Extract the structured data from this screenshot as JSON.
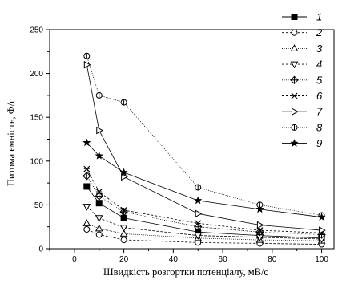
{
  "chart_data": {
    "type": "line",
    "xlabel": "Швидкість розгортки потенціалу, мВ/с",
    "ylabel": "Питома ємність, Ф/г",
    "xlim": [
      -10,
      105
    ],
    "ylim": [
      0,
      250
    ],
    "xticks": [
      0,
      20,
      40,
      60,
      80,
      100
    ],
    "yticks": [
      0,
      50,
      100,
      150,
      200,
      250
    ],
    "x": [
      5,
      10,
      20,
      50,
      75,
      100
    ],
    "legend_position": "top-right",
    "grid": false,
    "series": [
      {
        "name": "1",
        "marker": "square-filled",
        "dash": "solid",
        "values": [
          71,
          52,
          35,
          19,
          15,
          12
        ]
      },
      {
        "name": "2",
        "marker": "circle-open",
        "dash": "dash",
        "values": [
          22,
          16,
          10,
          7,
          6,
          5
        ]
      },
      {
        "name": "3",
        "marker": "triangle-up-open",
        "dash": "dot",
        "values": [
          29,
          23,
          17,
          12,
          10,
          9
        ]
      },
      {
        "name": "4",
        "marker": "triangle-down-open",
        "dash": "dash",
        "values": [
          48,
          35,
          24,
          15,
          13,
          11
        ]
      },
      {
        "name": "5",
        "marker": "diamond-cross",
        "dash": "dot",
        "values": [
          83,
          60,
          42,
          25,
          19,
          16
        ]
      },
      {
        "name": "6",
        "marker": "x-cross",
        "dash": "dash",
        "values": [
          91,
          65,
          44,
          29,
          21,
          18
        ]
      },
      {
        "name": "7",
        "marker": "triangle-right-open",
        "dash": "solid",
        "values": [
          210,
          135,
          82,
          40,
          27,
          21
        ]
      },
      {
        "name": "8",
        "marker": "circle-vbar",
        "dash": "dot",
        "values": [
          220,
          175,
          167,
          70,
          50,
          38
        ]
      },
      {
        "name": "9",
        "marker": "star-filled",
        "dash": "solid",
        "values": [
          121,
          106,
          87,
          55,
          45,
          36
        ]
      }
    ]
  }
}
